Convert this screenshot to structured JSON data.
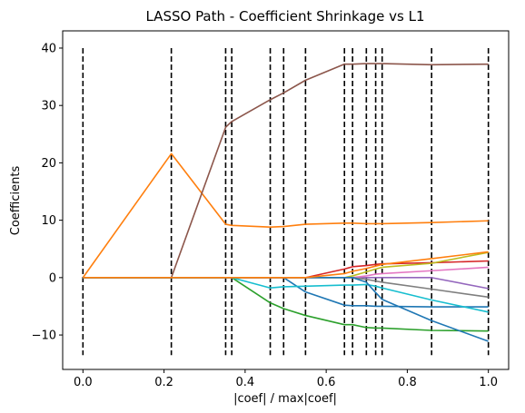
{
  "chart_data": {
    "type": "line",
    "title": "LASSO Path - Coefficient Shrinkage vs L1",
    "xlabel": "|coef| / max|coef|",
    "ylabel": "Coefficients",
    "xlim": [
      -0.05,
      1.05
    ],
    "ylim": [
      -16,
      43
    ],
    "xticks": [
      0.0,
      0.2,
      0.4,
      0.6,
      0.8,
      1.0
    ],
    "xtick_labels": [
      "0.0",
      "0.2",
      "0.4",
      "0.6",
      "0.8",
      "1.0"
    ],
    "yticks": [
      -10,
      0,
      10,
      20,
      30,
      40
    ],
    "ytick_labels": [
      "−10",
      "0",
      "10",
      "20",
      "30",
      "40"
    ],
    "grid": false,
    "x": [
      0.0,
      0.218,
      0.352,
      0.367,
      0.462,
      0.495,
      0.549,
      0.645,
      0.665,
      0.699,
      0.722,
      0.738,
      0.86,
      1.0
    ],
    "vlines": {
      "x": [
        0.0,
        0.218,
        0.352,
        0.367,
        0.462,
        0.495,
        0.549,
        0.645,
        0.665,
        0.699,
        0.722,
        0.738,
        0.86,
        1.0
      ],
      "ymin": -13.5,
      "ymax": 40,
      "color": "#000000",
      "style": "dashed"
    },
    "series": [
      {
        "color": "#1f77b4",
        "values": [
          0,
          0,
          0,
          0,
          0,
          0,
          -2.5,
          -4.8,
          -4.9,
          -4.9,
          -5.0,
          -5.0,
          -5.1,
          -5.1
        ]
      },
      {
        "color": "#ff7f0e",
        "values": [
          0,
          21.6,
          9.3,
          9.1,
          8.8,
          8.9,
          9.3,
          9.5,
          9.5,
          9.4,
          9.4,
          9.4,
          9.6,
          9.9
        ]
      },
      {
        "color": "#2ca02c",
        "values": [
          0,
          0,
          0,
          0,
          -4.4,
          -5.4,
          -6.6,
          -8.2,
          -8.2,
          -8.7,
          -8.8,
          -8.8,
          -9.2,
          -9.3
        ]
      },
      {
        "color": "#d62728",
        "values": [
          0,
          0,
          0,
          0,
          0,
          0,
          0,
          1.5,
          1.9,
          2.1,
          2.3,
          2.4,
          2.6,
          2.9
        ]
      },
      {
        "color": "#9467bd",
        "values": [
          0,
          0,
          0,
          0,
          0,
          0,
          0,
          0,
          0,
          0,
          0,
          0,
          0,
          -1.9
        ]
      },
      {
        "color": "#8c564b",
        "values": [
          0,
          0,
          26.2,
          27.2,
          31.0,
          32.2,
          34.4,
          37.2,
          37.2,
          37.3,
          37.3,
          37.3,
          37.1,
          37.2
        ]
      },
      {
        "color": "#e377c2",
        "values": [
          0,
          0,
          0,
          0,
          0,
          0,
          0,
          0,
          0,
          0.3,
          0.6,
          0.7,
          1.2,
          1.8
        ]
      },
      {
        "color": "#7f7f7f",
        "values": [
          0,
          0,
          0,
          0,
          0,
          0,
          0,
          0,
          0,
          -0.3,
          -0.6,
          -0.8,
          -2.0,
          -3.4
        ]
      },
      {
        "color": "#bcbd22",
        "values": [
          0,
          0,
          0,
          0,
          0,
          0,
          0,
          0,
          0.3,
          1.0,
          1.5,
          1.8,
          2.5,
          4.4
        ]
      },
      {
        "color": "#17becf",
        "values": [
          0,
          0,
          0,
          0,
          -1.8,
          -1.6,
          -1.5,
          -1.3,
          -1.3,
          -1.2,
          -1.5,
          -1.8,
          -3.9,
          -6.0
        ]
      },
      {
        "color": "#1f77b4",
        "values": [
          0,
          0,
          0,
          0,
          0,
          0,
          0,
          0,
          0,
          -0.8,
          -2.6,
          -3.8,
          -7.5,
          -11.1
        ]
      },
      {
        "color": "#ff7f0e",
        "values": [
          0,
          0,
          0,
          0,
          0,
          0,
          0,
          0.7,
          1.1,
          1.6,
          2.0,
          2.3,
          3.3,
          4.5
        ]
      }
    ]
  }
}
